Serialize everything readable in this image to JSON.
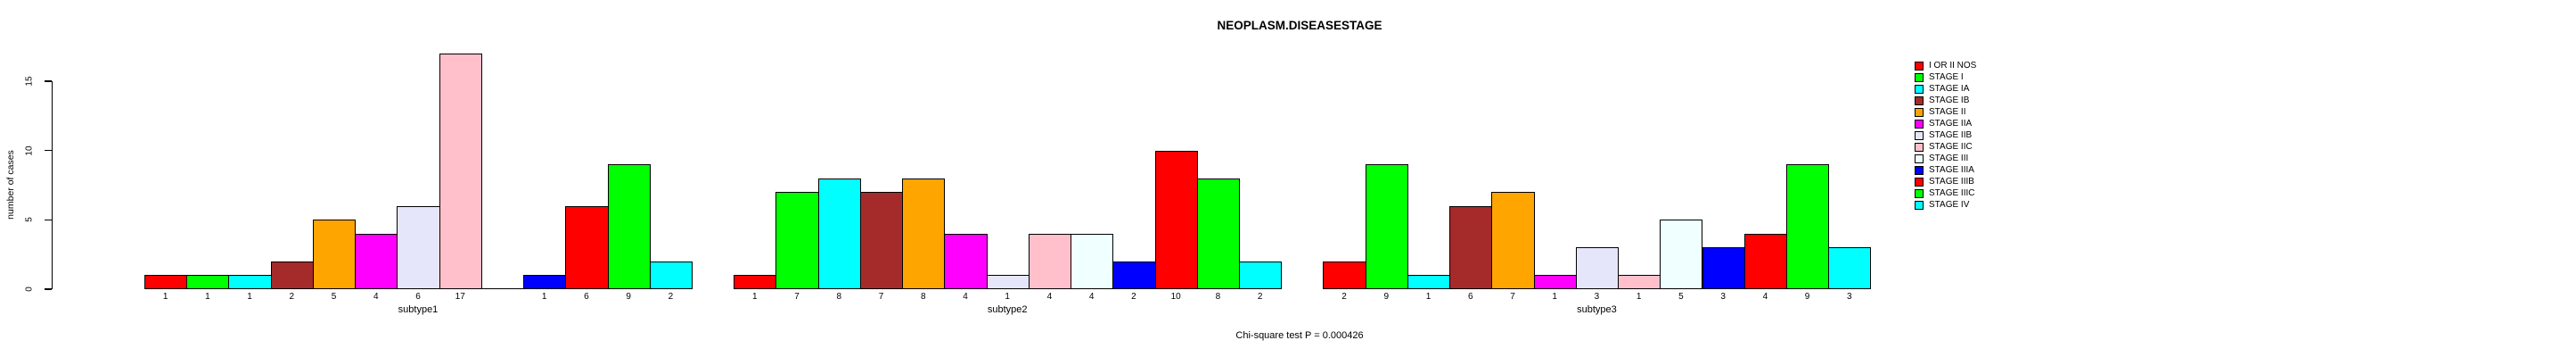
{
  "figure": {
    "title": "NEOPLASM.DISEASESTAGE",
    "note": "Chi-square test P = 0.000426"
  },
  "chart_data": {
    "type": "bar",
    "title": "NEOPLASM.DISEASESTAGE",
    "xlabel": "",
    "ylabel": "number of cases",
    "ylim": [
      0,
      15
    ],
    "yticks": [
      0,
      5,
      10,
      15
    ],
    "grid": false,
    "legend_position": "right",
    "bar_value_labels": true,
    "note": "Chi-square test P = 0.000426",
    "categories": [
      "subtype1",
      "subtype2",
      "subtype3"
    ],
    "series": [
      {
        "name": "I OR II NOS",
        "color": "#FF0000",
        "values": [
          1,
          1,
          2
        ]
      },
      {
        "name": "STAGE I",
        "color": "#00FF00",
        "values": [
          1,
          7,
          9
        ]
      },
      {
        "name": "STAGE IA",
        "color": "#00FFFF",
        "values": [
          1,
          8,
          1
        ]
      },
      {
        "name": "STAGE IB",
        "color": "#A52A2A",
        "values": [
          2,
          7,
          6
        ]
      },
      {
        "name": "STAGE II",
        "color": "#FFA500",
        "values": [
          5,
          8,
          7
        ]
      },
      {
        "name": "STAGE IIA",
        "color": "#FF00FF",
        "values": [
          4,
          4,
          1
        ]
      },
      {
        "name": "STAGE IIB",
        "color": "#E6E6FA",
        "values": [
          6,
          1,
          3
        ]
      },
      {
        "name": "STAGE IIC",
        "color": "#FFC0CB",
        "values": [
          17,
          4,
          1
        ]
      },
      {
        "name": "STAGE III",
        "color": "#F0FFFF",
        "values": [
          0,
          4,
          5
        ]
      },
      {
        "name": "STAGE IIIA",
        "color": "#0000FF",
        "values": [
          1,
          2,
          3
        ]
      },
      {
        "name": "STAGE IIIB",
        "color": "#FF0000",
        "values": [
          6,
          10,
          4
        ]
      },
      {
        "name": "STAGE IIIC",
        "color": "#00FF00",
        "values": [
          9,
          8,
          9
        ]
      },
      {
        "name": "STAGE IV",
        "color": "#00FFFF",
        "values": [
          2,
          2,
          3
        ]
      }
    ]
  }
}
